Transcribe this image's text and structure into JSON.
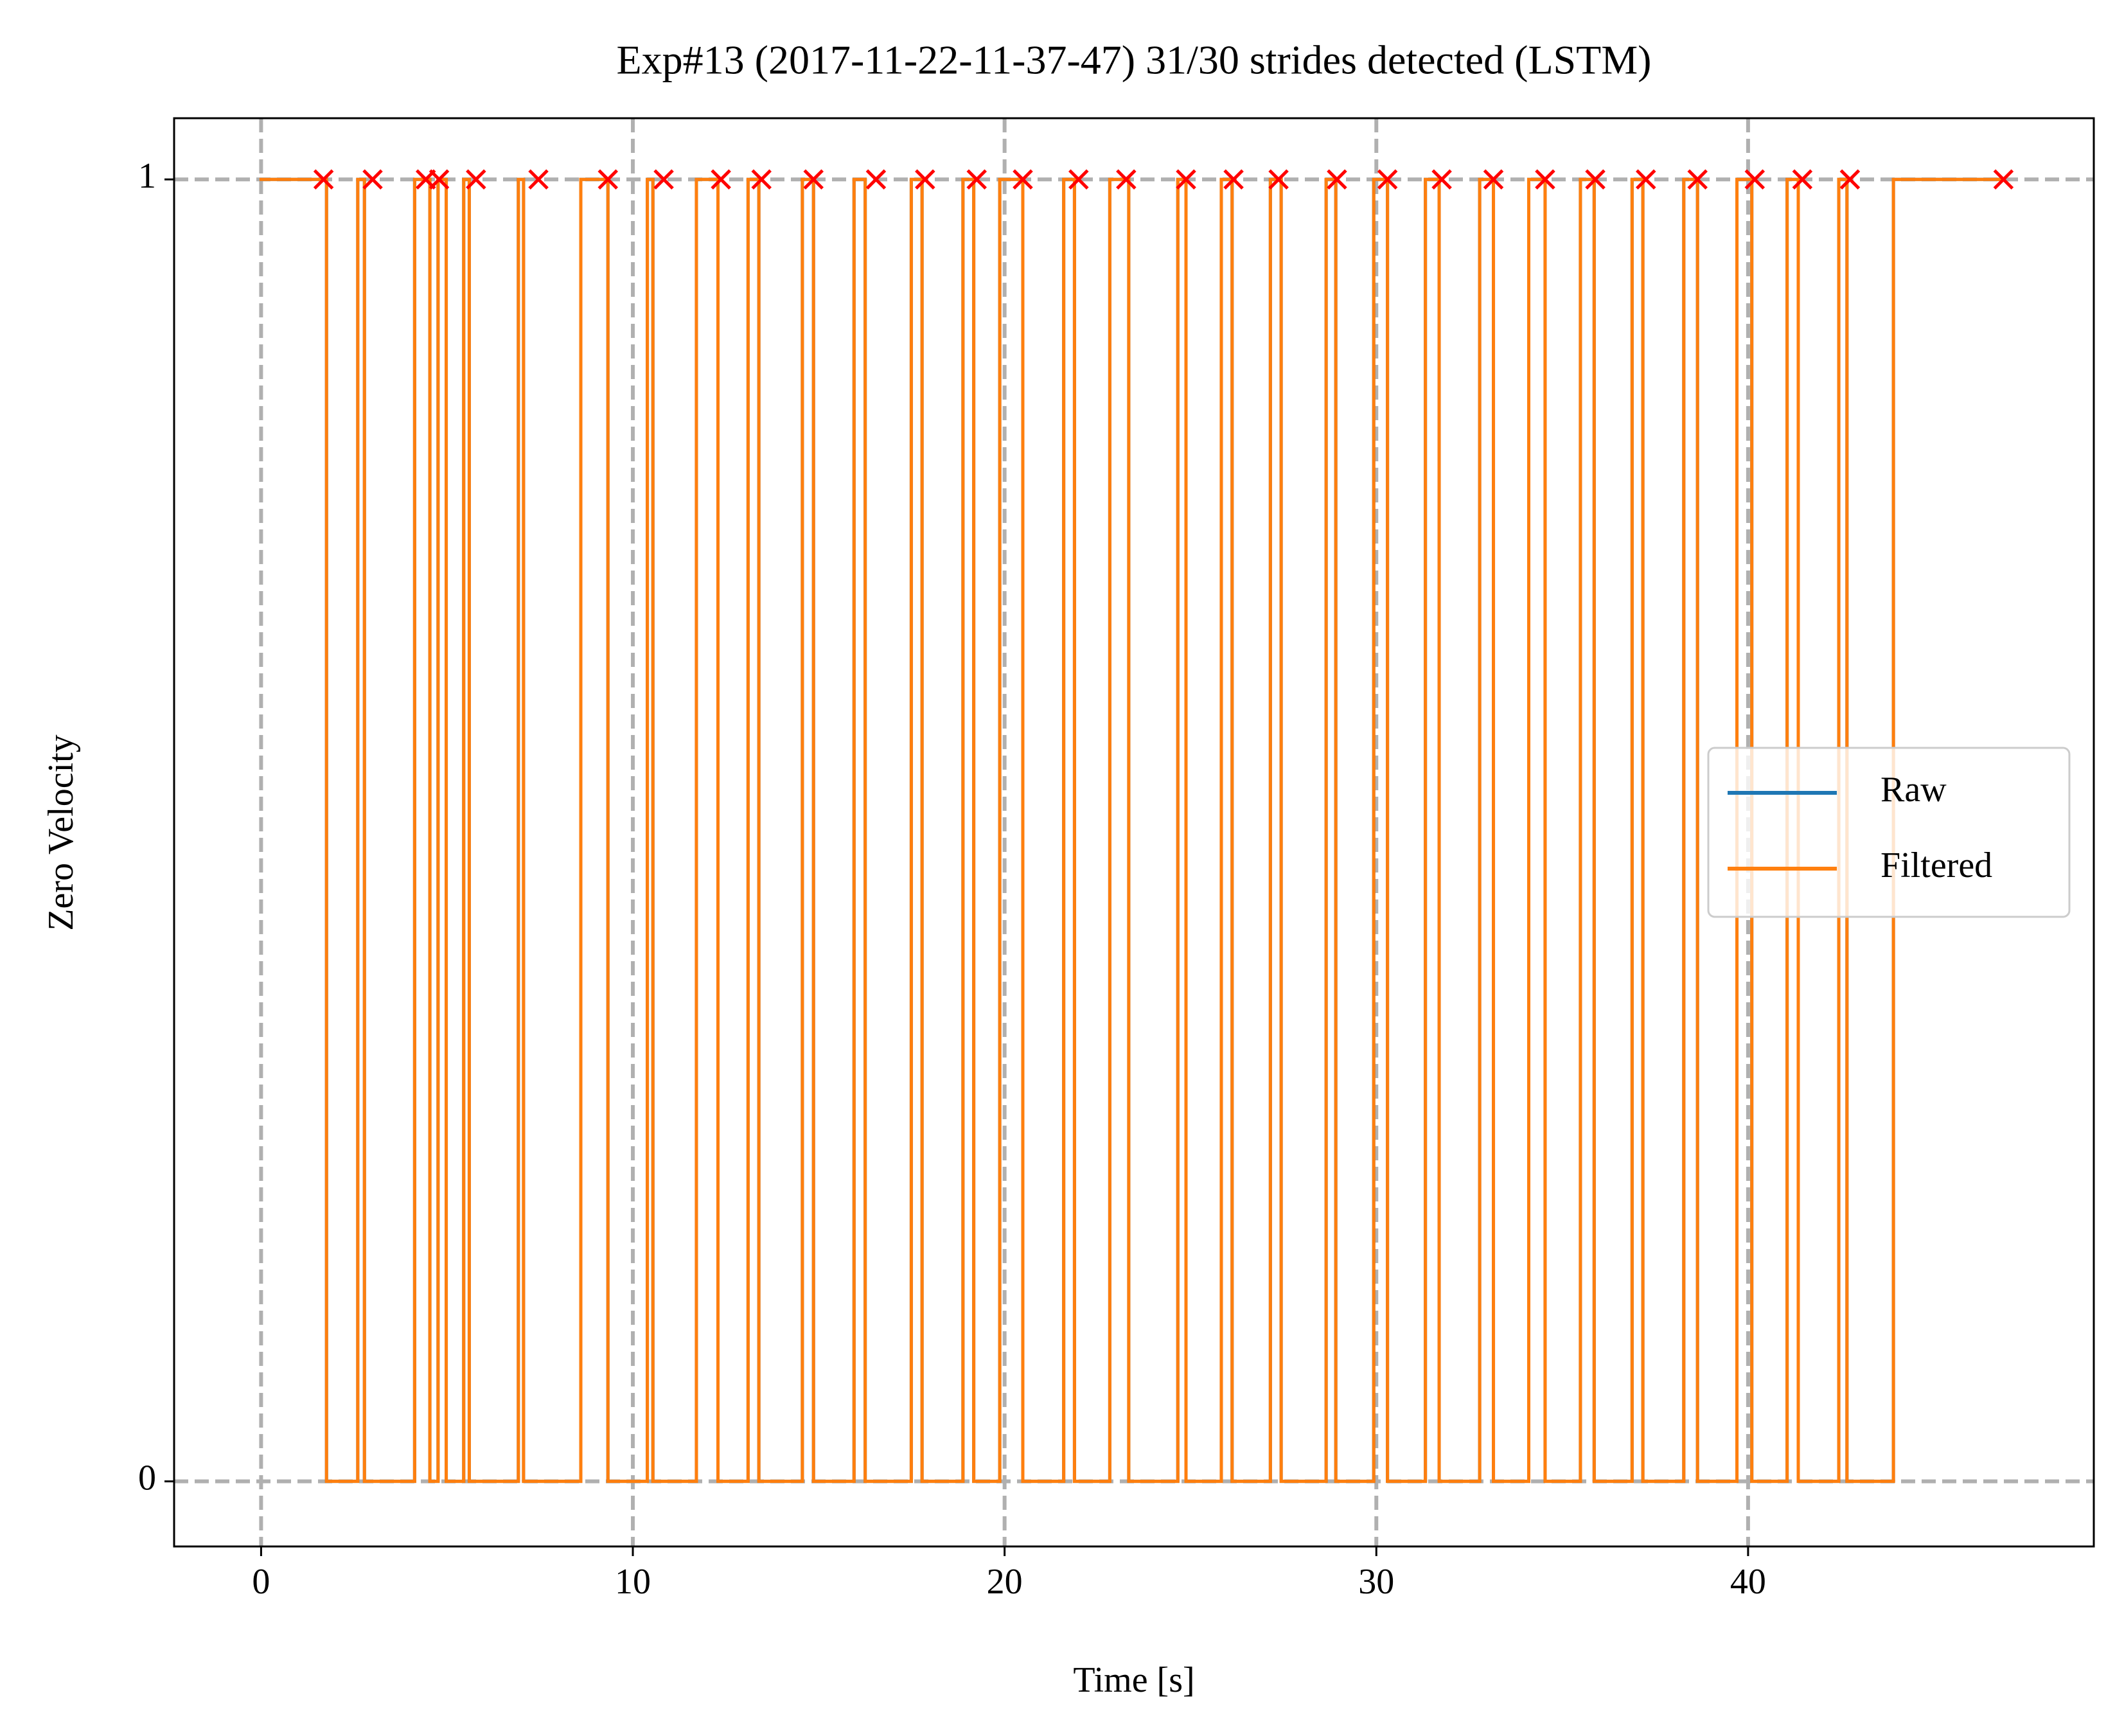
{
  "chart_data": {
    "type": "step",
    "title": "Exp#13 (2017-11-22-11-37-47) 31/30 strides detected (LSTM)",
    "x_label": "Time [s]",
    "y_label": "Zero Velocity",
    "x": [
      0,
      1.76,
      2.6,
      2.78,
      4.13,
      4.54,
      4.76,
      4.98,
      5.45,
      5.6,
      6.92,
      7.06,
      8.6,
      9.33,
      10.39,
      10.54,
      11.71,
      12.29,
      13.1,
      13.39,
      14.56,
      14.86,
      15.95,
      16.25,
      17.49,
      17.78,
      18.88,
      19.17,
      19.87,
      20.49,
      21.59,
      21.88,
      22.83,
      23.34,
      24.66,
      24.88,
      25.83,
      26.12,
      27.15,
      27.44,
      28.65,
      28.91,
      29.93,
      30.3,
      31.32,
      31.69,
      32.78,
      33.15,
      34.1,
      34.54,
      35.49,
      35.86,
      36.88,
      37.17,
      38.27,
      38.64,
      39.7,
      40.1,
      41.05,
      41.35,
      42.44,
      42.66,
      43.91,
      46.76
    ],
    "series": [
      {
        "name": "Raw",
        "color": "#1f77b4",
        "values": [
          1,
          0,
          1,
          0,
          1,
          0,
          1,
          0,
          1,
          0,
          1,
          0,
          1,
          0,
          1,
          0,
          1,
          0,
          1,
          0,
          1,
          0,
          1,
          0,
          1,
          0,
          1,
          0,
          1,
          0,
          1,
          0,
          1,
          0,
          1,
          0,
          1,
          0,
          1,
          0,
          1,
          0,
          1,
          0,
          1,
          0,
          1,
          0,
          1,
          0,
          1,
          0,
          1,
          0,
          1,
          0,
          1,
          0,
          1,
          0,
          1,
          0,
          1,
          1
        ]
      },
      {
        "name": "Filtered",
        "color": "#ff7f0e",
        "values": [
          1,
          0,
          1,
          0,
          1,
          0,
          1,
          0,
          1,
          0,
          1,
          0,
          1,
          0,
          1,
          0,
          1,
          0,
          1,
          0,
          1,
          0,
          1,
          0,
          1,
          0,
          1,
          0,
          1,
          0,
          1,
          0,
          1,
          0,
          1,
          0,
          1,
          0,
          1,
          0,
          1,
          0,
          1,
          0,
          1,
          0,
          1,
          0,
          1,
          0,
          1,
          0,
          1,
          0,
          1,
          0,
          1,
          0,
          1,
          0,
          1,
          0,
          1,
          1
        ]
      }
    ],
    "markers": {
      "color": "#ff0000",
      "x": [
        1.68,
        3.0,
        4.43,
        4.79,
        5.78,
        7.46,
        9.33,
        10.83,
        12.37,
        13.46,
        14.86,
        16.54,
        17.86,
        19.25,
        20.49,
        21.99,
        23.27,
        24.88,
        26.16,
        27.37,
        28.94,
        30.3,
        31.76,
        33.15,
        34.54,
        35.89,
        37.25,
        38.64,
        40.18,
        41.46,
        42.74,
        46.87
      ],
      "values": [
        1,
        1,
        1,
        1,
        1,
        1,
        1,
        1,
        1,
        1,
        1,
        1,
        1,
        1,
        1,
        1,
        1,
        1,
        1,
        1,
        1,
        1,
        1,
        1,
        1,
        1,
        1,
        1,
        1,
        1,
        1,
        1
      ]
    },
    "xlim": [
      -2.34,
      49.3
    ],
    "ylim": [
      -0.05,
      1.047
    ],
    "xticks": [
      0,
      10,
      20,
      30,
      40
    ],
    "yticks": [
      0,
      1
    ],
    "grid": true,
    "legend": "center right"
  }
}
